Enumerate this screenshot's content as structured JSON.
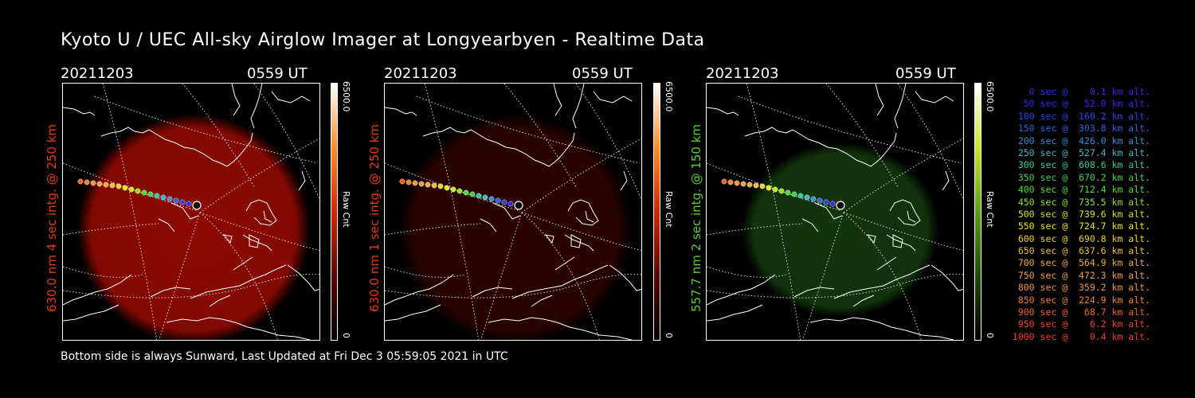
{
  "page": {
    "title": "Kyoto U / UEC All-sky Airglow Imager at Longyearbyen - Realtime Data",
    "footer": "Bottom side is always Sunward, Last Updated at Fri Dec  3 05:59:05 2021 in UTC"
  },
  "panels": [
    {
      "date": "20211203",
      "time": "0559 UT",
      "ylabel": "630.0 nm 4 sec intg. @ 250 km",
      "label_color": "#e03c14",
      "glow_color": "#8c0a02",
      "glow_level": 1.0,
      "cbar_max": "6500.0",
      "cbar_unit": "Raw Cnt",
      "cbar_min": "0",
      "cbar_colors": [
        "#ffffff",
        "#ff8c28",
        "#cc2a06",
        "#5a0800",
        "#000000"
      ]
    },
    {
      "date": "20211203",
      "time": "0559 UT",
      "ylabel": "630.0 nm 1 sec intg. @ 250 km",
      "label_color": "#e03c14",
      "glow_color": "#8c0a02",
      "glow_level": 0.3,
      "cbar_max": "6500.0",
      "cbar_unit": "Raw Cnt",
      "cbar_min": "0",
      "cbar_colors": [
        "#ffffff",
        "#ff8c28",
        "#cc2a06",
        "#5a0800",
        "#000000"
      ]
    },
    {
      "date": "20211203",
      "time": "0559 UT",
      "ylabel": "557.7 nm 2 sec intg. @ 150 km",
      "label_color": "#5acd32",
      "glow_color": "#1e5a14",
      "glow_level": 0.6,
      "cbar_max": "6500.0",
      "cbar_unit": "Raw Cnt",
      "cbar_min": "0",
      "cbar_colors": [
        "#ffffff",
        "#c8e632",
        "#5aa014",
        "#1e4a06",
        "#000000"
      ]
    }
  ],
  "trajectory_legend": [
    {
      "text": "   0 sec @    0.1 km alt.",
      "color": "#3c28e6"
    },
    {
      "text": "  50 sec @   52.0 km alt.",
      "color": "#3c28e6"
    },
    {
      "text": " 100 sec @  160.2 km alt.",
      "color": "#2846e6"
    },
    {
      "text": " 150 sec @  303.8 km alt.",
      "color": "#2864dc"
    },
    {
      "text": " 200 sec @  426.0 km alt.",
      "color": "#3c8cdc"
    },
    {
      "text": " 250 sec @  527.4 km alt.",
      "color": "#46b4c8"
    },
    {
      "text": " 300 sec @  608.6 km alt.",
      "color": "#32c8a0"
    },
    {
      "text": " 350 sec @  670.2 km alt.",
      "color": "#3cd250"
    },
    {
      "text": " 400 sec @  712.4 km alt.",
      "color": "#50dc32"
    },
    {
      "text": " 450 sec @  735.5 km alt.",
      "color": "#8ce628"
    },
    {
      "text": " 500 sec @  739.6 km alt.",
      "color": "#c8e628"
    },
    {
      "text": " 550 sec @  724.7 km alt.",
      "color": "#e6e628"
    },
    {
      "text": " 600 sec @  690.8 km alt.",
      "color": "#f0d228"
    },
    {
      "text": " 650 sec @  637.6 km alt.",
      "color": "#f0be3c"
    },
    {
      "text": " 700 sec @  564.9 km alt.",
      "color": "#f0aa46"
    },
    {
      "text": " 750 sec @  472.3 km alt.",
      "color": "#f0a050"
    },
    {
      "text": " 800 sec @  359.2 km alt.",
      "color": "#f09646"
    },
    {
      "text": " 850 sec @  224.9 km alt.",
      "color": "#f08232"
    },
    {
      "text": " 900 sec @   68.7 km alt.",
      "color": "#f06428"
    },
    {
      "text": " 950 sec @    6.2 km alt.",
      "color": "#f04628"
    },
    {
      "text": "1000 sec @    0.4 km alt.",
      "color": "#f03c28"
    }
  ]
}
